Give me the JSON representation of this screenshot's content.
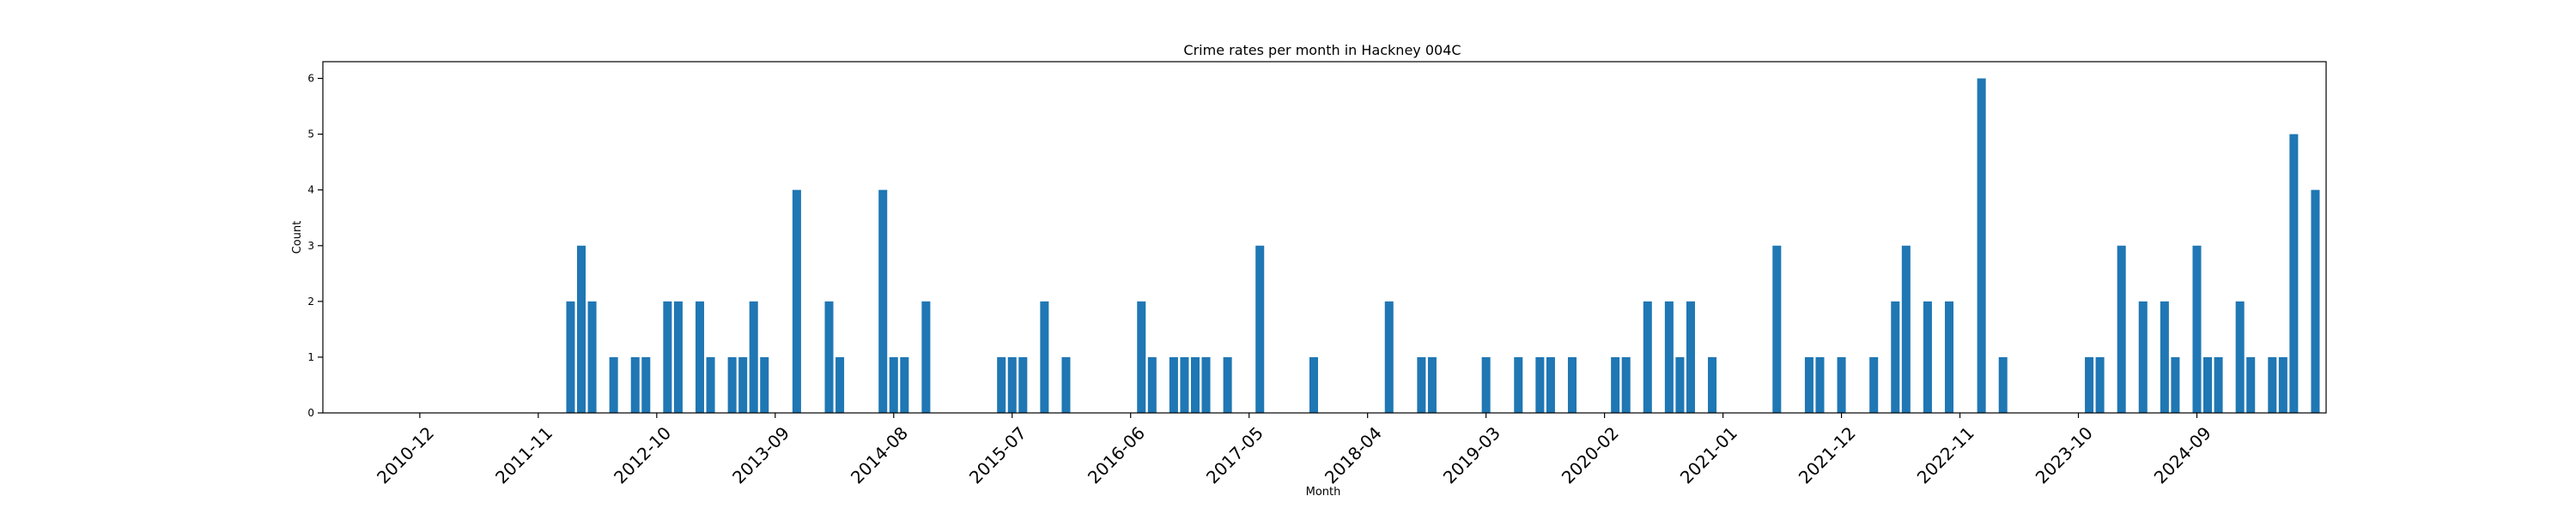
{
  "chart_data": {
    "type": "bar",
    "title": "Crime rates per month in Hackney 004C",
    "xlabel": "Month",
    "ylabel": "Count",
    "ylim": [
      0,
      6.3
    ],
    "yticks": [
      0,
      1,
      2,
      3,
      4,
      5,
      6
    ],
    "x_month_range": [
      "2010-03",
      "2025-09"
    ],
    "xticks": [
      "2010-12",
      "2011-11",
      "2012-10",
      "2013-09",
      "2014-08",
      "2015-07",
      "2016-06",
      "2017-05",
      "2018-04",
      "2019-03",
      "2020-02",
      "2021-01",
      "2021-12",
      "2022-11",
      "2023-10",
      "2024-09"
    ],
    "bar_color": "#1f77b4",
    "grid": false,
    "months": [
      "2012-02",
      "2012-03",
      "2012-04",
      "2012-06",
      "2012-08",
      "2012-09",
      "2012-11",
      "2012-12",
      "2013-02",
      "2013-03",
      "2013-05",
      "2013-06",
      "2013-07",
      "2013-08",
      "2013-11",
      "2014-02",
      "2014-03",
      "2014-07",
      "2014-08",
      "2014-09",
      "2014-11",
      "2015-06",
      "2015-07",
      "2015-08",
      "2015-10",
      "2015-12",
      "2016-07",
      "2016-08",
      "2016-10",
      "2016-11",
      "2016-12",
      "2017-01",
      "2017-03",
      "2017-06",
      "2017-11",
      "2018-06",
      "2018-09",
      "2018-10",
      "2019-03",
      "2019-06",
      "2019-08",
      "2019-09",
      "2019-11",
      "2020-03",
      "2020-04",
      "2020-06",
      "2020-08",
      "2020-09",
      "2020-10",
      "2020-12",
      "2021-06",
      "2021-09",
      "2021-10",
      "2021-12",
      "2022-03",
      "2022-05",
      "2022-06",
      "2022-08",
      "2022-10",
      "2023-01",
      "2023-03",
      "2023-11",
      "2023-12",
      "2024-02",
      "2024-04",
      "2024-06",
      "2024-07",
      "2024-09",
      "2024-10",
      "2024-11",
      "2025-01",
      "2025-02",
      "2025-04",
      "2025-05",
      "2025-06",
      "2025-08"
    ],
    "values": [
      2,
      3,
      2,
      1,
      1,
      1,
      2,
      2,
      2,
      1,
      1,
      1,
      2,
      1,
      4,
      2,
      1,
      4,
      1,
      1,
      2,
      1,
      1,
      1,
      2,
      1,
      2,
      1,
      1,
      1,
      1,
      1,
      1,
      3,
      1,
      2,
      1,
      1,
      1,
      1,
      1,
      1,
      1,
      1,
      1,
      2,
      2,
      1,
      2,
      1,
      3,
      1,
      1,
      1,
      1,
      2,
      3,
      2,
      2,
      6,
      1,
      1,
      1,
      3,
      2,
      2,
      1,
      3,
      1,
      1,
      2,
      1,
      1,
      1,
      5,
      4
    ]
  }
}
